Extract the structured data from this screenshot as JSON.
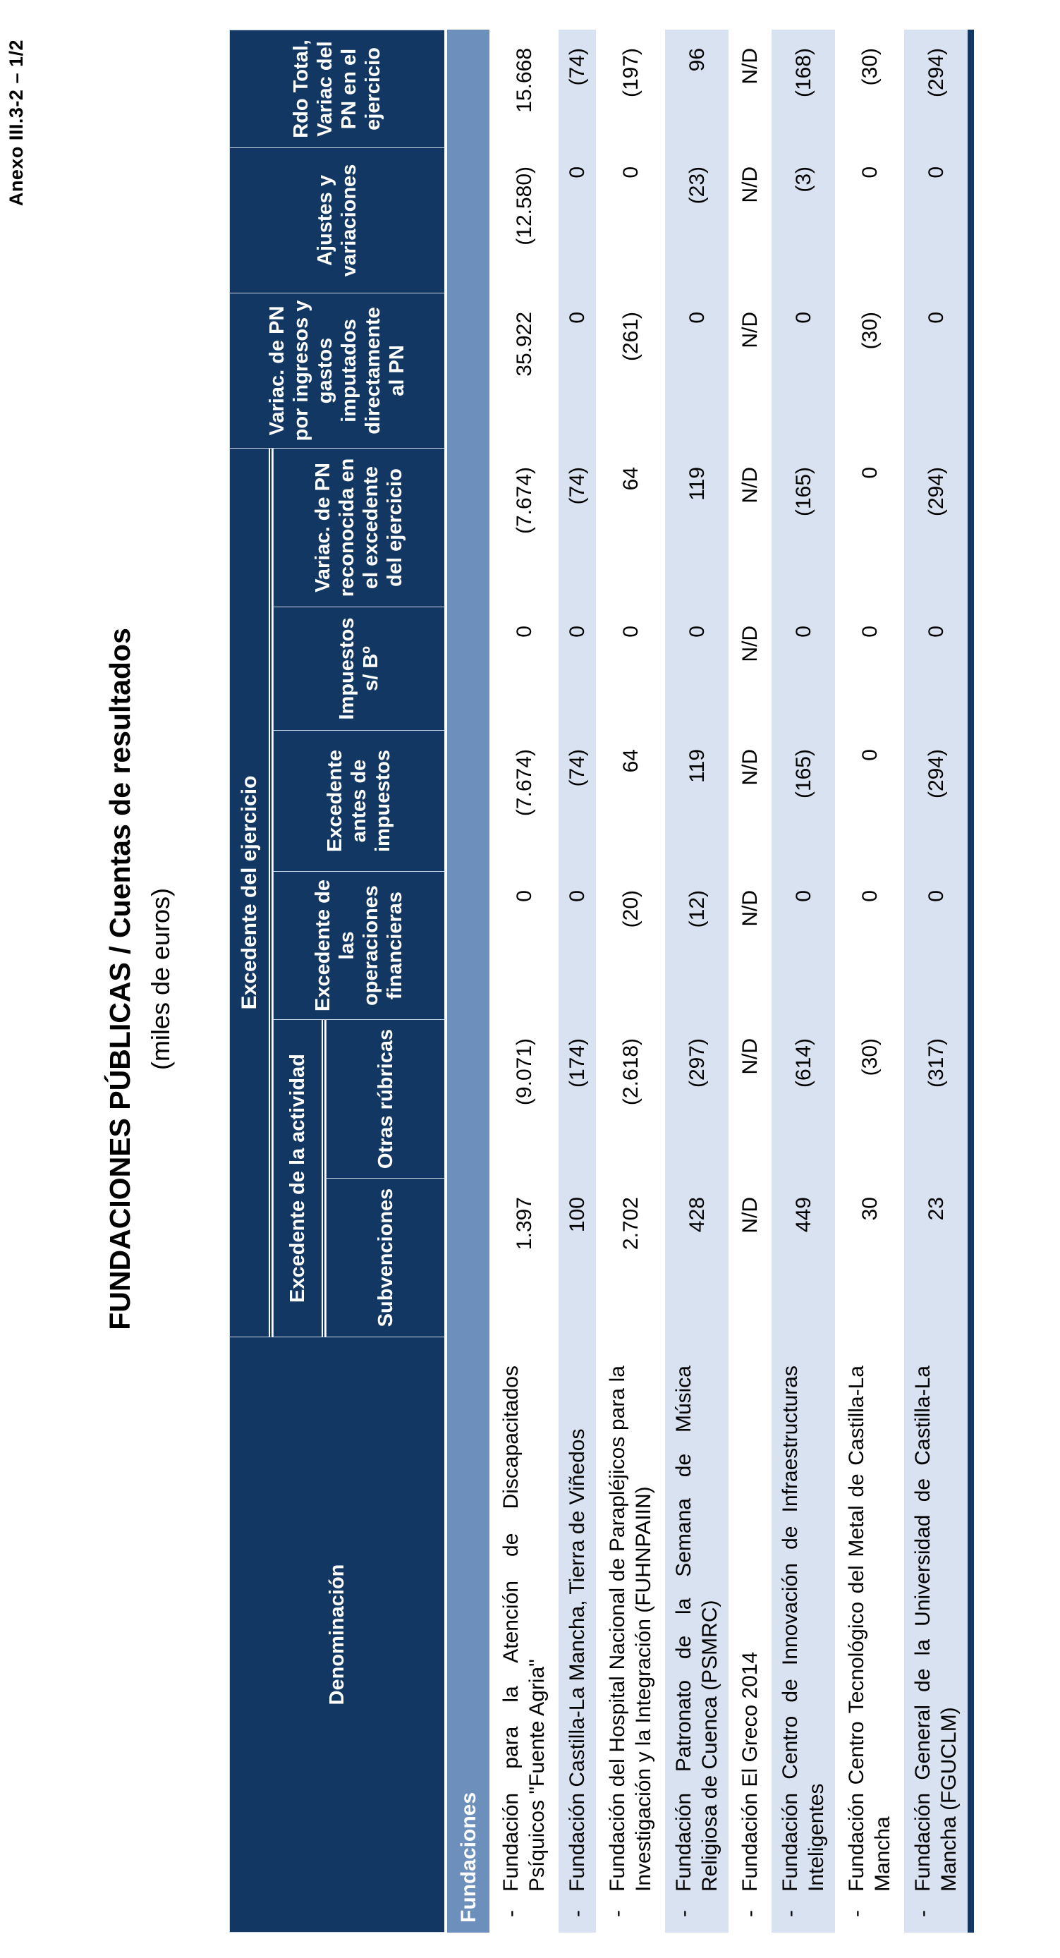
{
  "page": {
    "anexo": "Anexo III.3-2 – 1/2",
    "title": "FUNDACIONES PÚBLICAS / Cuentas de resultados",
    "subtitle": "(miles de euros)"
  },
  "colors": {
    "header_navy": "#123763",
    "section_blue": "#6D8FBC",
    "row_stripe": "#D8E2F1",
    "page_bg": "#ffffff"
  },
  "table": {
    "dash": "-",
    "section": "Fundaciones",
    "headers": {
      "denominacion": "Denominación",
      "excedente_ejercicio": "Excedente del ejercicio",
      "excedente_actividad": "Excedente de la actividad",
      "subvenciones": "Subvenciones",
      "otras_rubricas": "Otras rúbricas",
      "excedente_operaciones_financieras": "Excedente de las operaciones financieras",
      "excedente_antes_impuestos": "Excedente antes de impuestos",
      "impuestos": "Impuestos s/ Bº",
      "variac_pn_reconocida": "Variac. de PN reconocida en el excedente del ejercicio",
      "variac_pn_ingresos": "Variac. de PN por ingresos y gastos imputados directamente al PN",
      "ajustes_variaciones": "Ajustes y variaciones",
      "rdo_total": "Rdo Total, Variac del PN en el ejercicio"
    },
    "rows": [
      {
        "name": "Fundación para la Atención de Discapacitados Psíquicos \"Fuente Agria\"",
        "values": [
          "1.397",
          "(9.071)",
          "0",
          "(7.674)",
          "0",
          "(7.674)",
          "35.922",
          "(12.580)",
          "15.668"
        ]
      },
      {
        "name": "Fundación Castilla-La Mancha, Tierra de Viñedos",
        "values": [
          "100",
          "(174)",
          "0",
          "(74)",
          "0",
          "(74)",
          "0",
          "0",
          "(74)"
        ]
      },
      {
        "name": "Fundación del Hospital Nacional de Parapléjicos para la Investigación y la Integración (FUHNPAIIN)",
        "values": [
          "2.702",
          "(2.618)",
          "(20)",
          "64",
          "0",
          "64",
          "(261)",
          "0",
          "(197)"
        ]
      },
      {
        "name": "Fundación Patronato de la Semana de Música Religiosa de Cuenca (PSMRC)",
        "values": [
          "428",
          "(297)",
          "(12)",
          "119",
          "0",
          "119",
          "0",
          "(23)",
          "96"
        ]
      },
      {
        "name": "Fundación El Greco 2014",
        "values": [
          "N/D",
          "N/D",
          "N/D",
          "N/D",
          "N/D",
          "N/D",
          "N/D",
          "N/D",
          "N/D"
        ]
      },
      {
        "name": "Fundación Centro de Innovación de Infraestructuras Inteligentes",
        "values": [
          "449",
          "(614)",
          "0",
          "(165)",
          "0",
          "(165)",
          "0",
          "(3)",
          "(168)"
        ]
      },
      {
        "name": "Fundación Centro Tecnológico del Metal de Castilla-La Mancha",
        "values": [
          "30",
          "(30)",
          "0",
          "0",
          "0",
          "0",
          "(30)",
          "0",
          "(30)"
        ]
      },
      {
        "name": "Fundación General de la Universidad de Castilla-La Mancha (FGUCLM)",
        "values": [
          "23",
          "(317)",
          "0",
          "(294)",
          "0",
          "(294)",
          "0",
          "0",
          "(294)"
        ]
      }
    ]
  }
}
